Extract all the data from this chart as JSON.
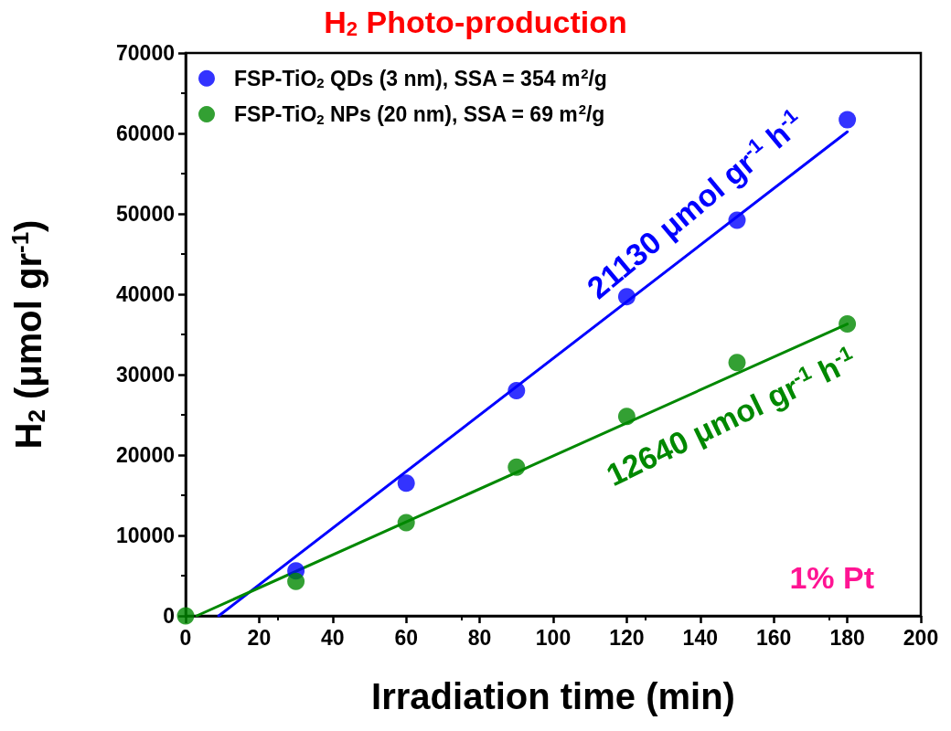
{
  "chart_data": {
    "type": "scatter",
    "title": "H$_{2}$ Photo-production",
    "xlabel": "Irradiation time (min)",
    "ylabel": "H$_{2}$ (μmol gr$^{-1}$)",
    "xlim": [
      0,
      200
    ],
    "xticks": [
      0,
      20,
      40,
      60,
      80,
      100,
      120,
      140,
      160,
      180,
      200
    ],
    "ylim": [
      0,
      70000
    ],
    "yticks": [
      0,
      10000,
      20000,
      30000,
      40000,
      50000,
      60000,
      70000
    ],
    "marker": "circle",
    "grid": false,
    "legend": "top left",
    "series": [
      {
        "name": "FSP-TiO$_{2}$ QDs (3 nm), SSA = 354 m$^{2}$/g",
        "color": "#0000ff",
        "x": [
          30,
          60,
          90,
          120,
          150,
          180
        ],
        "values": [
          5600,
          16500,
          28000,
          39700,
          49200,
          61700
        ]
      },
      {
        "name": "FSP-TiO$_{2}$ NPs (20 nm), SSA = 69 m$^{2}$/g",
        "color": "#008800",
        "x": [
          0,
          30,
          60,
          90,
          120,
          150,
          180
        ],
        "values": [
          0,
          4300,
          11600,
          18500,
          24800,
          31500,
          36300
        ]
      },
      {
        "type": "line",
        "color": "#0000ff",
        "marker": "none",
        "x": [
          9,
          180
        ],
        "values": [
          0,
          60200
        ]
      },
      {
        "type": "line",
        "color": "#008800",
        "marker": "none",
        "x": [
          3,
          180
        ],
        "values": [
          0,
          36300
        ]
      }
    ],
    "annotations": [
      "21130 μmol gr$^{-1}$ h$^{-1}$",
      "12640 μmol gr$^{-1}$ h$^{-1}$",
      "1% Pt"
    ]
  }
}
